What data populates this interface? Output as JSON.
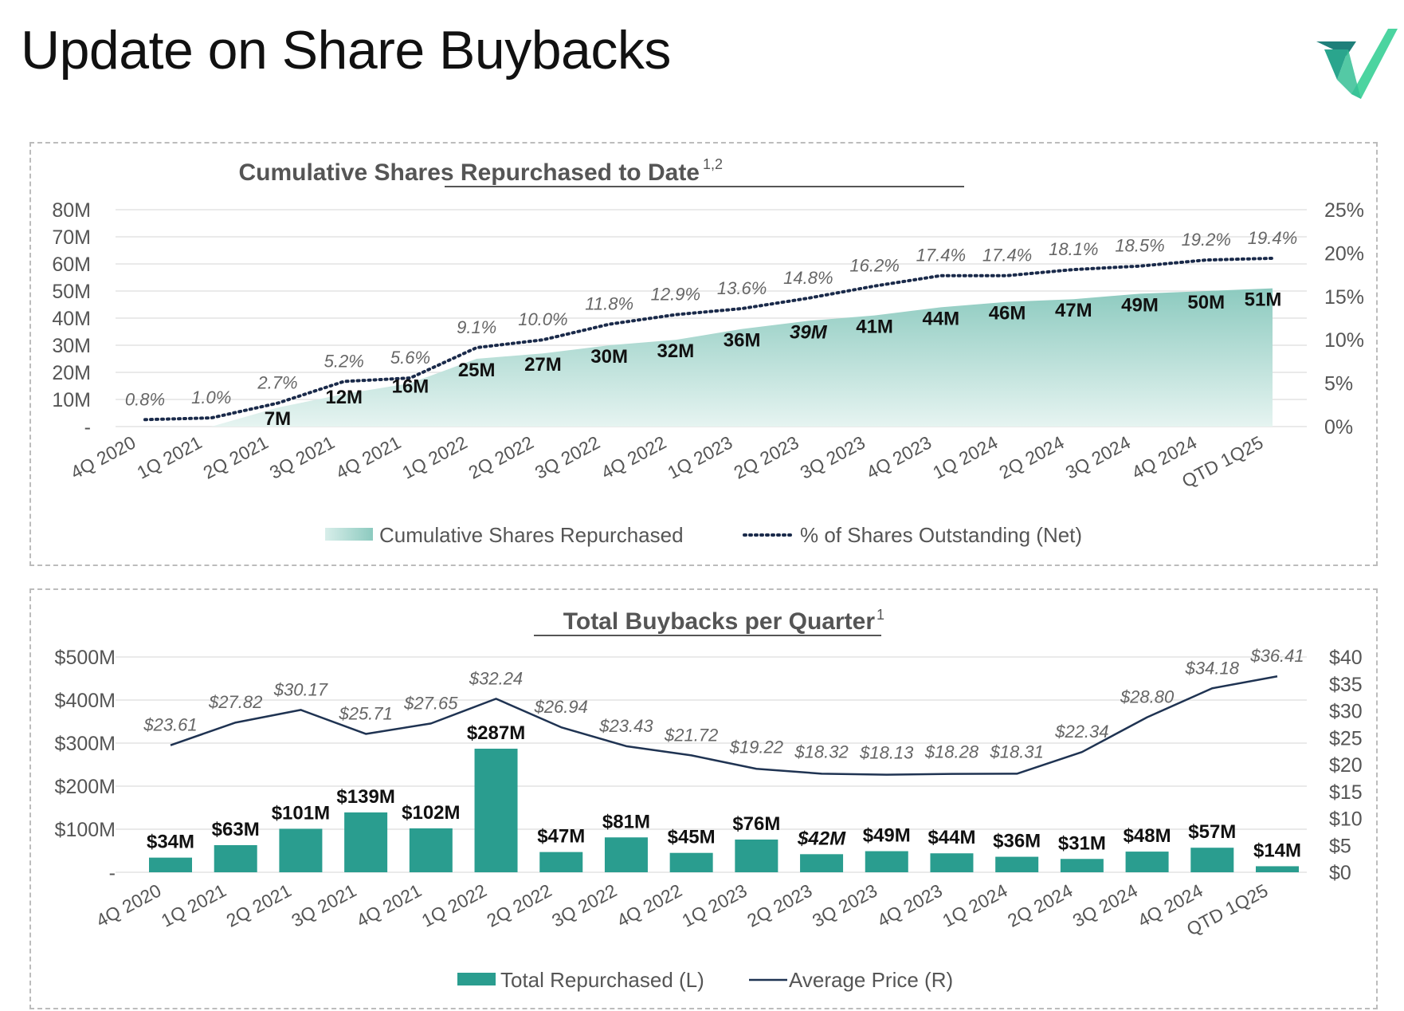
{
  "page": {
    "title": "Update on Share Buybacks"
  },
  "colors": {
    "teal": "#2a9d8f",
    "area_top": "#8ccabf",
    "area_bottom": "#e3f2ef",
    "navy_line": "#1f3352",
    "dotted_line": "#1a2a4a",
    "logo_light": "#4cd4a0",
    "logo_dark": "#1f7f7a"
  },
  "chart_data": [
    {
      "type": "area",
      "title": "Cumulative Shares Repurchased to Date",
      "title_superscript": "1,2",
      "categories": [
        "4Q 2020",
        "1Q 2021",
        "2Q 2021",
        "3Q 2021",
        "4Q 2021",
        "1Q 2022",
        "2Q 2022",
        "3Q 2022",
        "4Q 2022",
        "1Q 2023",
        "2Q 2023",
        "3Q 2023",
        "4Q 2023",
        "1Q 2024",
        "2Q 2024",
        "3Q 2024",
        "4Q 2024",
        "QTD 1Q25"
      ],
      "series": [
        {
          "name": "Cumulative Shares Repurchased",
          "axis": "left",
          "values": [
            0,
            0,
            7,
            12,
            16,
            25,
            27,
            30,
            32,
            36,
            39,
            41,
            44,
            46,
            47,
            49,
            50,
            51
          ],
          "labels": [
            "",
            "",
            "7M",
            "12M",
            "16M",
            "25M",
            "27M",
            "30M",
            "32M",
            "36M",
            "39M",
            "41M",
            "44M",
            "46M",
            "47M",
            "49M",
            "50M",
            "51M"
          ]
        },
        {
          "name": "% of Shares Outstanding (Net)",
          "axis": "right",
          "values": [
            0.8,
            1.0,
            2.7,
            5.2,
            5.6,
            9.1,
            10.0,
            11.8,
            12.9,
            13.6,
            14.8,
            16.2,
            17.4,
            17.4,
            18.1,
            18.5,
            19.2,
            19.4
          ],
          "labels": [
            "0.8%",
            "1.0%",
            "2.7%",
            "5.2%",
            "5.6%",
            "9.1%",
            "10.0%",
            "11.8%",
            "12.9%",
            "13.6%",
            "14.8%",
            "16.2%",
            "17.4%",
            "17.4%",
            "18.1%",
            "18.5%",
            "19.2%",
            "19.4%"
          ]
        }
      ],
      "left_axis": {
        "ylim": [
          0,
          80
        ],
        "ticks": [
          "-",
          "10M",
          "20M",
          "30M",
          "40M",
          "50M",
          "60M",
          "70M",
          "80M"
        ]
      },
      "right_axis": {
        "ylim": [
          0,
          25
        ],
        "ticks": [
          "0%",
          "5%",
          "10%",
          "15%",
          "20%",
          "25%"
        ]
      },
      "grid": true,
      "legend": "bottom-center"
    },
    {
      "type": "bar",
      "title": "Total Buybacks per Quarter",
      "title_superscript": "1",
      "categories": [
        "4Q 2020",
        "1Q 2021",
        "2Q 2021",
        "3Q 2021",
        "4Q 2021",
        "1Q 2022",
        "2Q 2022",
        "3Q 2022",
        "4Q 2022",
        "1Q 2023",
        "2Q 2023",
        "3Q 2023",
        "4Q 2023",
        "1Q 2024",
        "2Q 2024",
        "3Q 2024",
        "4Q 2024",
        "QTD 1Q25"
      ],
      "series": [
        {
          "name": "Total Repurchased (L)",
          "axis": "left",
          "values": [
            34,
            63,
            101,
            139,
            102,
            287,
            47,
            81,
            45,
            76,
            42,
            49,
            44,
            36,
            31,
            48,
            57,
            14
          ],
          "labels": [
            "$34M",
            "$63M",
            "$101M",
            "$139M",
            "$102M",
            "$287M",
            "$47M",
            "$81M",
            "$45M",
            "$76M",
            "$42M",
            "$49M",
            "$44M",
            "$36M",
            "$31M",
            "$48M",
            "$57M",
            "$14M"
          ]
        },
        {
          "name": "Average Price (R)",
          "axis": "right",
          "values": [
            23.61,
            27.82,
            30.17,
            25.71,
            27.65,
            32.24,
            26.94,
            23.43,
            21.72,
            19.22,
            18.32,
            18.13,
            18.28,
            18.31,
            22.34,
            28.8,
            34.18,
            36.41
          ],
          "labels": [
            "$23.61",
            "$27.82",
            "$30.17",
            "$25.71",
            "$27.65",
            "$32.24",
            "$26.94",
            "$23.43",
            "$21.72",
            "$19.22",
            "$18.32",
            "$18.13",
            "$18.28",
            "$18.31",
            "$22.34",
            "$28.80",
            "$34.18",
            "$36.41"
          ]
        }
      ],
      "left_axis": {
        "ylim": [
          0,
          500
        ],
        "ticks": [
          "-",
          "$100M",
          "$200M",
          "$300M",
          "$400M",
          "$500M"
        ]
      },
      "right_axis": {
        "ylim": [
          0,
          40
        ],
        "ticks": [
          "$0",
          "$5",
          "$10",
          "$15",
          "$20",
          "$25",
          "$30",
          "$35",
          "$40"
        ]
      },
      "grid": true,
      "legend": "bottom-center"
    }
  ]
}
